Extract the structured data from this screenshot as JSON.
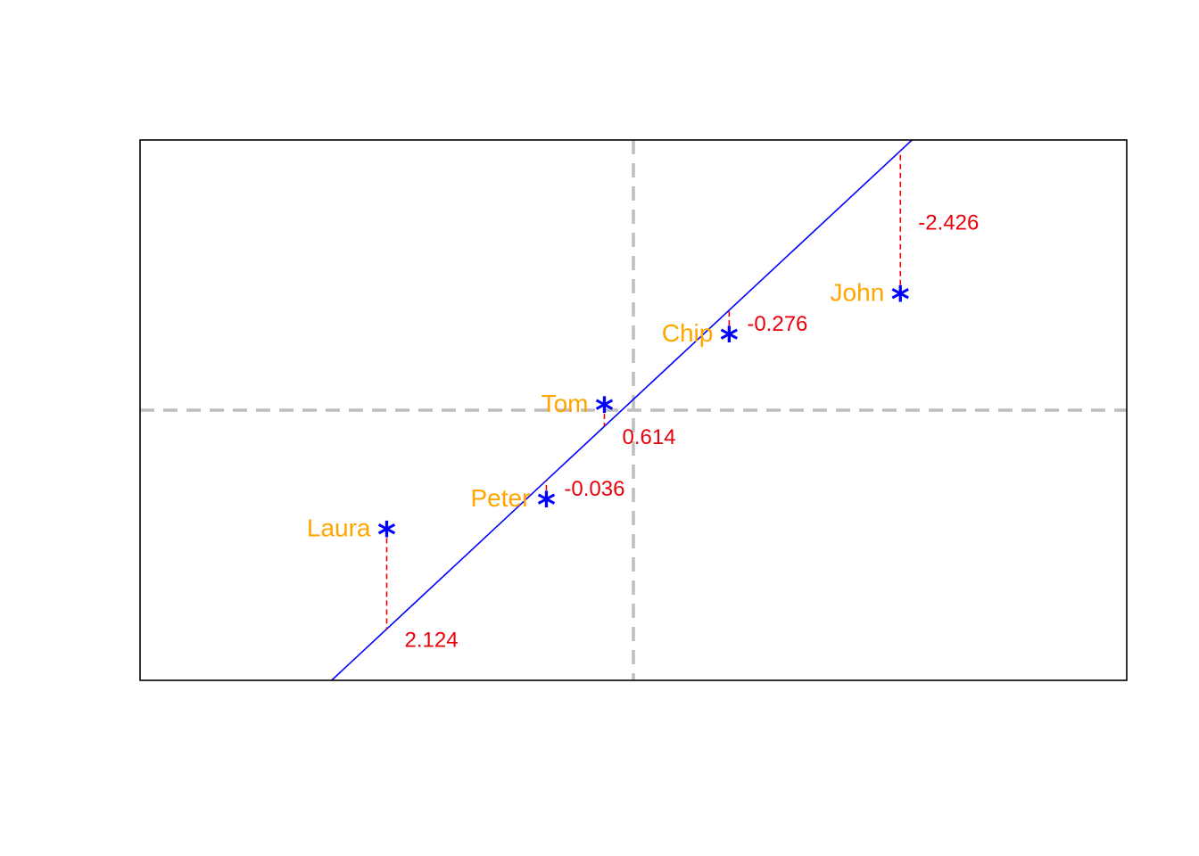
{
  "chart_data": {
    "type": "scatter",
    "title": "",
    "xlabel": "",
    "ylabel": "",
    "xlim": [
      -1.7,
      1.7
    ],
    "ylim": [
      -1.0,
      1.0
    ],
    "axes_visible": false,
    "reference_lines": {
      "x": 0,
      "y": 0,
      "style": "dashed"
    },
    "fit_line": {
      "intercept": 0.04,
      "slope": 1.0
    },
    "points": [
      {
        "label": "John",
        "x": 0.92,
        "y": 0.43,
        "residual": "-2.426"
      },
      {
        "label": "Chip",
        "x": 0.33,
        "y": 0.28,
        "residual": "-0.276"
      },
      {
        "label": "Tom",
        "x": -0.1,
        "y": 0.02,
        "residual": "0.614"
      },
      {
        "label": "Peter",
        "x": -0.3,
        "y": -0.33,
        "residual": "-0.036"
      },
      {
        "label": "Laura",
        "x": -0.85,
        "y": -0.44,
        "residual": "2.124"
      }
    ],
    "colors": {
      "points": "#0000ff",
      "point_labels": "#ffa500",
      "fit_line": "#0000ff",
      "residual_lines": "#e8000b",
      "residual_labels": "#e8000b",
      "reference_lines": "#bebebe",
      "frame": "#000000"
    }
  }
}
